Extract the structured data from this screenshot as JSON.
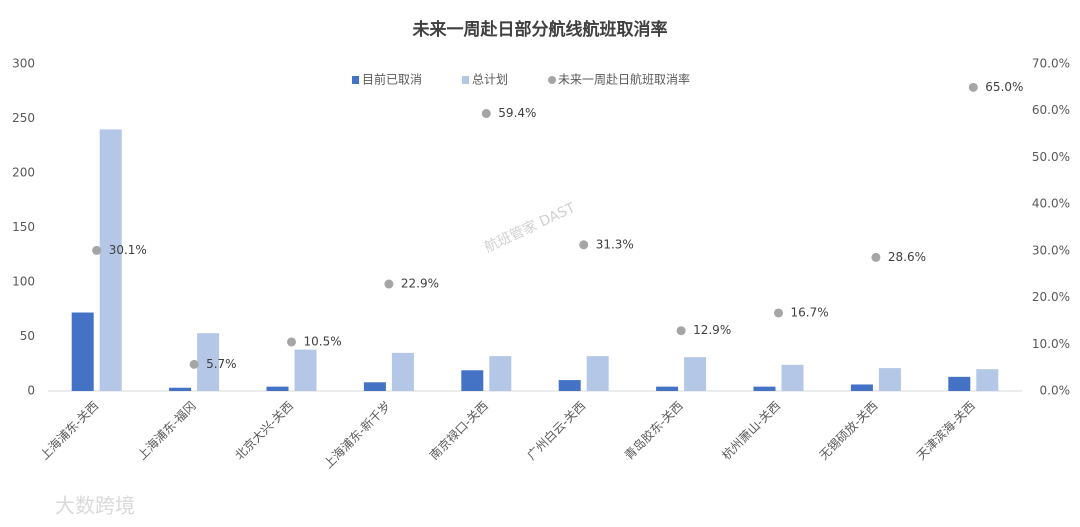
{
  "chart_data": {
    "type": "bar",
    "title": "未来一周赴日部分航线航班取消率",
    "categories": [
      "上海浦东-关西",
      "上海浦东-福冈",
      "北京大兴-关西",
      "上海浦东-新千岁",
      "南京禄口-关西",
      "广州白云-关西",
      "青岛胶东-关西",
      "杭州萧山-关西",
      "无锡硕放-关西",
      "天津滨海-关西"
    ],
    "series": [
      {
        "name": "目前已取消",
        "color": "#4472c4",
        "values": [
          72,
          3,
          4,
          8,
          19,
          10,
          4,
          4,
          6,
          13
        ]
      },
      {
        "name": "总计划",
        "color": "#b4c7e7",
        "values": [
          240,
          53,
          38,
          35,
          32,
          32,
          31,
          24,
          21,
          20
        ]
      },
      {
        "name": "未来一周赴日航班取消率",
        "color": "#a5a5a5",
        "type": "scatter",
        "axis": "y2",
        "values": [
          30.1,
          5.7,
          10.5,
          22.9,
          59.4,
          31.3,
          12.9,
          16.7,
          28.6,
          65.0
        ],
        "value_labels": [
          "30.1%",
          "5.7%",
          "10.5%",
          "22.9%",
          "59.4%",
          "31.3%",
          "12.9%",
          "16.7%",
          "28.6%",
          "65.0%"
        ]
      }
    ],
    "ylim": [
      0,
      300
    ],
    "yticks": [
      0,
      50,
      100,
      150,
      200,
      250,
      300
    ],
    "y2lim": [
      0,
      70
    ],
    "y2ticks": [
      {
        "value": 0,
        "label": "0.0%"
      },
      {
        "value": 10,
        "label": "10.0%"
      },
      {
        "value": 20,
        "label": "20.0%"
      },
      {
        "value": 30,
        "label": "30.0%"
      },
      {
        "value": 40,
        "label": "40.0%"
      },
      {
        "value": 50,
        "label": "50.0%"
      },
      {
        "value": 60,
        "label": "60.0%"
      },
      {
        "value": 70,
        "label": "70.0%"
      }
    ],
    "legend": "top",
    "watermarks": [
      "航班管家 DAST",
      "大数跨境"
    ]
  }
}
